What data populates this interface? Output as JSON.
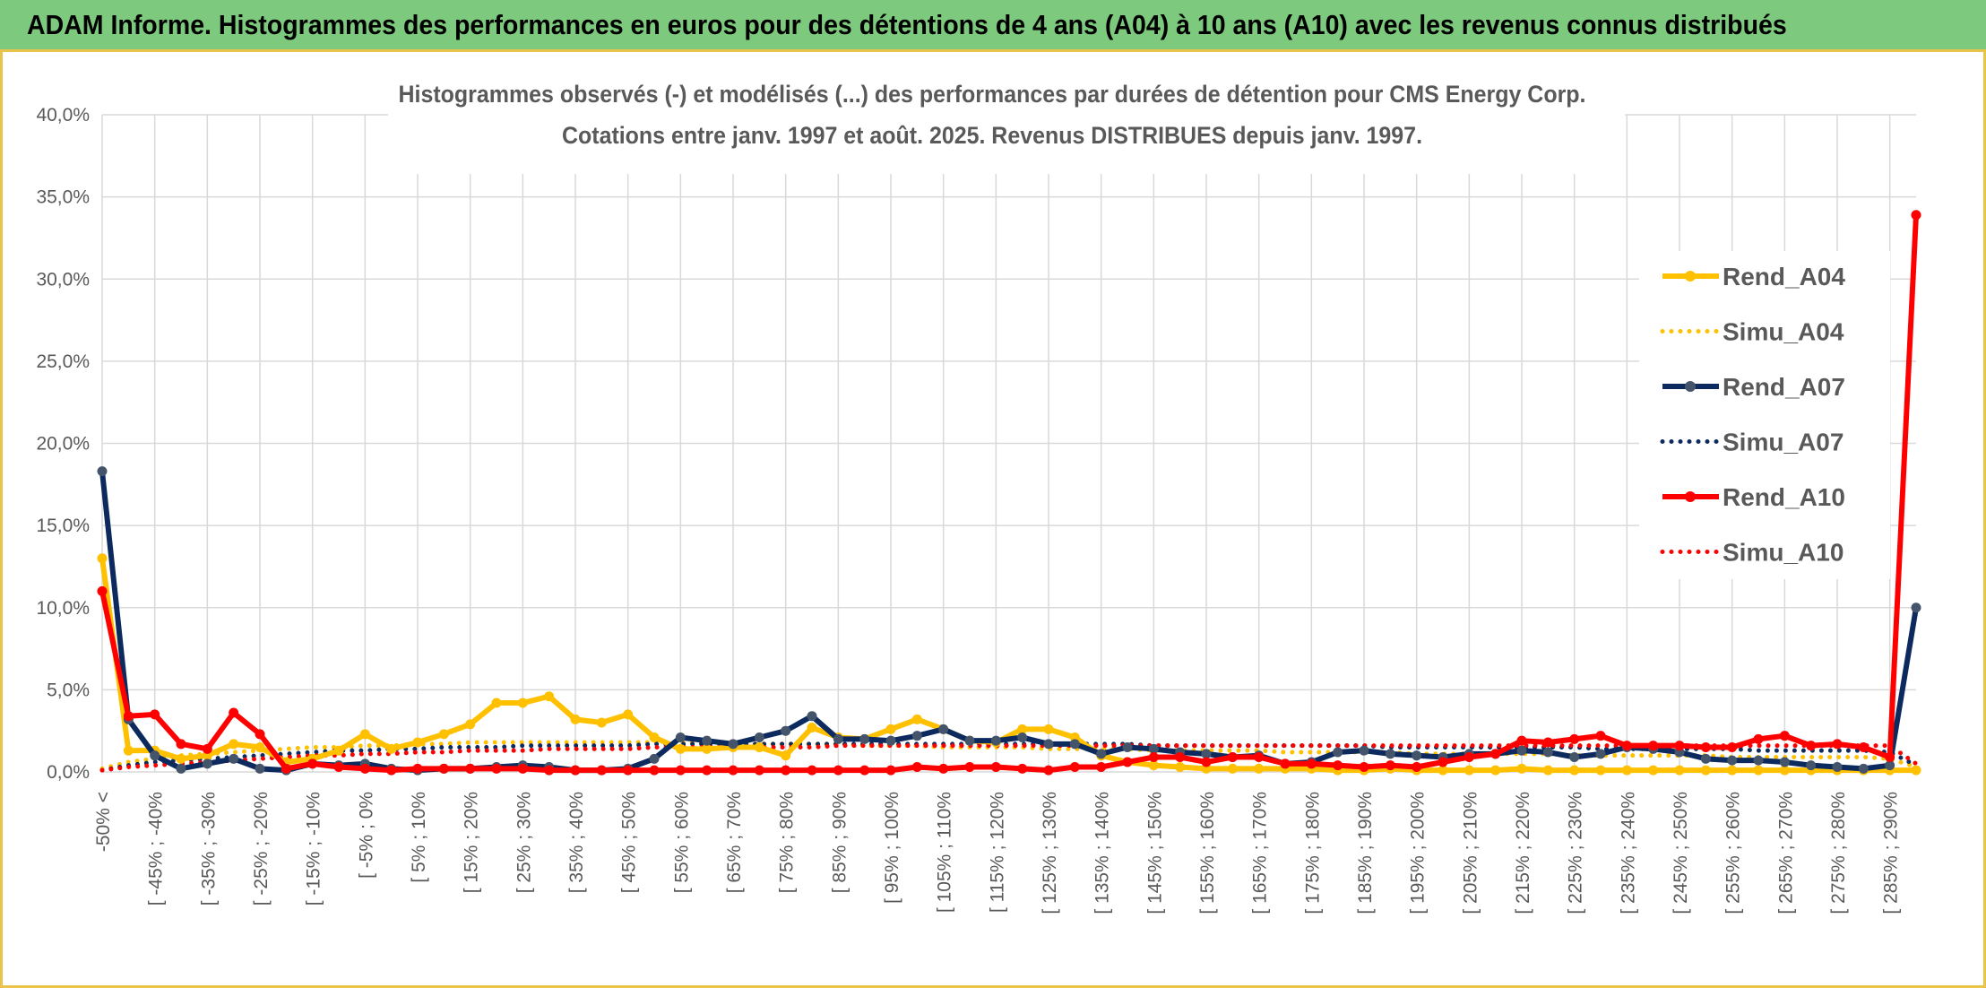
{
  "banner": {
    "title": "ADAM Informe. Histogrammes des performances en euros pour des détentions de 4 ans (A04) à 10 ans (A10) avec les revenus connus distribués"
  },
  "colors": {
    "banner_bg": "#7dc97d",
    "accent_border": "#e9c34a",
    "grid": "#d9d9d9",
    "axis_text": "#595959",
    "yellow": "#ffc000",
    "navy": "#0d2a5e",
    "red": "#ff0000"
  },
  "chart_data": {
    "type": "line",
    "title": "Histogrammes observés (-) et modélisés (...) des performances par durées de détention pour CMS Energy Corp.",
    "subtitle": "Cotations entre janv. 1997 et août. 2025. Revenus DISTRIBUES depuis janv. 1997.",
    "ylim": [
      0,
      40
    ],
    "yticks": [
      "0,0%",
      "5,0%",
      "10,0%",
      "15,0%",
      "20,0%",
      "25,0%",
      "30,0%",
      "35,0%",
      "40,0%"
    ],
    "grid": true,
    "legend_position": "right",
    "categories": [
      "-50% <",
      "[ -45% ; -40%",
      "[ -35% ; -30%",
      "[ -25% ; -20%",
      "[ -15% ; -10%",
      "[ -5% ; 0%",
      "[ 5% ; 10%",
      "[ 15% ; 20%",
      "[ 25% ; 30%",
      "[ 35% ; 40%",
      "[ 45% ; 50%",
      "[ 55% ; 60%",
      "[ 65% ; 70%",
      "[ 75% ; 80%",
      "[ 85% ; 90%",
      "[ 95% ; 100%",
      "[ 105% ; 110%",
      "[ 115% ; 120%",
      "[ 125% ; 130%",
      "[ 135% ; 140%",
      "[ 145% ; 150%",
      "[ 155% ; 160%",
      "[ 165% ; 170%",
      "[ 175% ; 180%",
      "[ 185% ; 190%",
      "[ 195% ; 200%",
      "[ 205% ; 210%",
      "[ 215% ; 220%",
      "[ 225% ; 230%",
      "[ 235% ; 240%",
      "[ 245% ; 250%",
      "[ 255% ; 260%",
      "[ 265% ; 270%",
      "[ 275% ; 280%",
      "[ 285% ; 290%"
    ],
    "x": [
      -50,
      -45,
      -40,
      -35,
      -30,
      -25,
      -20,
      -15,
      -10,
      -5,
      0,
      5,
      10,
      15,
      20,
      25,
      30,
      35,
      40,
      45,
      50,
      55,
      60,
      65,
      70,
      75,
      80,
      85,
      90,
      95,
      100,
      105,
      110,
      115,
      120,
      125,
      130,
      135,
      140,
      145,
      150,
      155,
      160,
      165,
      170,
      175,
      180,
      185,
      190,
      195,
      200,
      205,
      210,
      215,
      220,
      225,
      230,
      235,
      240,
      245,
      250,
      255,
      260,
      265,
      270,
      275,
      280,
      285,
      290,
      295
    ],
    "series": [
      {
        "name": "Rend_A04",
        "color": "#ffc000",
        "style": "solid",
        "values": [
          13.0,
          1.3,
          1.3,
          0.8,
          1.0,
          1.7,
          1.5,
          0.6,
          0.8,
          1.3,
          2.3,
          1.4,
          1.8,
          2.3,
          2.9,
          4.2,
          4.2,
          4.6,
          3.2,
          3.0,
          3.5,
          2.1,
          1.4,
          1.4,
          1.5,
          1.5,
          1.0,
          2.7,
          2.1,
          2.0,
          2.6,
          3.2,
          2.6,
          1.9,
          1.8,
          2.6,
          2.6,
          2.1,
          1.0,
          0.6,
          0.4,
          0.3,
          0.2,
          0.2,
          0.2,
          0.2,
          0.2,
          0.1,
          0.1,
          0.2,
          0.1,
          0.1,
          0.1,
          0.1,
          0.2,
          0.1,
          0.1,
          0.1,
          0.1,
          0.1,
          0.1,
          0.1,
          0.1,
          0.1,
          0.1,
          0.1,
          0.1,
          0.1,
          0.1,
          0.1
        ]
      },
      {
        "name": "Simu_A04",
        "color": "#ffc000",
        "style": "dotted",
        "values": [
          0.2,
          0.6,
          0.8,
          1.0,
          1.1,
          1.2,
          1.3,
          1.4,
          1.5,
          1.5,
          1.6,
          1.6,
          1.7,
          1.7,
          1.8,
          1.8,
          1.8,
          1.8,
          1.8,
          1.8,
          1.8,
          1.8,
          1.8,
          1.8,
          1.7,
          1.7,
          1.7,
          1.7,
          1.7,
          1.6,
          1.6,
          1.6,
          1.5,
          1.5,
          1.5,
          1.5,
          1.4,
          1.4,
          1.4,
          1.4,
          1.3,
          1.3,
          1.3,
          1.3,
          1.3,
          1.2,
          1.2,
          1.2,
          1.2,
          1.2,
          1.1,
          1.1,
          1.1,
          1.1,
          1.1,
          1.1,
          1.0,
          1.0,
          1.0,
          1.0,
          1.0,
          1.0,
          0.9,
          0.9,
          0.9,
          0.9,
          0.9,
          0.9,
          0.8,
          0.3
        ]
      },
      {
        "name": "Rend_A07",
        "color": "#0d2a5e",
        "marker_color": "#44546a",
        "style": "solid",
        "values": [
          18.3,
          3.2,
          1.0,
          0.2,
          0.5,
          0.8,
          0.2,
          0.1,
          0.5,
          0.4,
          0.5,
          0.2,
          0.1,
          0.2,
          0.2,
          0.3,
          0.4,
          0.3,
          0.1,
          0.1,
          0.2,
          0.8,
          2.1,
          1.9,
          1.7,
          2.1,
          2.5,
          3.4,
          2.0,
          2.0,
          1.9,
          2.2,
          2.6,
          1.9,
          1.9,
          2.1,
          1.7,
          1.7,
          1.1,
          1.5,
          1.4,
          1.2,
          1.1,
          0.9,
          1.0,
          0.5,
          0.6,
          1.2,
          1.3,
          1.1,
          1.0,
          0.9,
          1.1,
          1.1,
          1.3,
          1.2,
          0.9,
          1.1,
          1.5,
          1.4,
          1.2,
          0.8,
          0.7,
          0.7,
          0.6,
          0.4,
          0.3,
          0.2,
          0.4,
          10.0
        ]
      },
      {
        "name": "Simu_A07",
        "color": "#0d2a5e",
        "style": "dotted",
        "values": [
          0.1,
          0.4,
          0.6,
          0.7,
          0.8,
          0.9,
          1.0,
          1.1,
          1.2,
          1.3,
          1.3,
          1.4,
          1.4,
          1.5,
          1.5,
          1.5,
          1.6,
          1.6,
          1.6,
          1.6,
          1.6,
          1.7,
          1.7,
          1.7,
          1.7,
          1.7,
          1.7,
          1.7,
          1.7,
          1.7,
          1.7,
          1.7,
          1.7,
          1.7,
          1.7,
          1.7,
          1.7,
          1.7,
          1.7,
          1.7,
          1.6,
          1.6,
          1.6,
          1.6,
          1.6,
          1.6,
          1.6,
          1.6,
          1.6,
          1.5,
          1.5,
          1.5,
          1.5,
          1.5,
          1.5,
          1.5,
          1.5,
          1.4,
          1.4,
          1.4,
          1.4,
          1.4,
          1.4,
          1.3,
          1.3,
          1.3,
          1.3,
          1.3,
          1.2,
          0.4
        ]
      },
      {
        "name": "Rend_A10",
        "color": "#ff0000",
        "style": "solid",
        "values": [
          11.0,
          3.4,
          3.5,
          1.7,
          1.4,
          3.6,
          2.3,
          0.2,
          0.5,
          0.3,
          0.2,
          0.1,
          0.2,
          0.2,
          0.2,
          0.2,
          0.2,
          0.1,
          0.1,
          0.1,
          0.1,
          0.1,
          0.1,
          0.1,
          0.1,
          0.1,
          0.1,
          0.1,
          0.1,
          0.1,
          0.1,
          0.3,
          0.2,
          0.3,
          0.3,
          0.2,
          0.1,
          0.3,
          0.3,
          0.6,
          0.9,
          0.9,
          0.6,
          0.9,
          0.9,
          0.5,
          0.5,
          0.4,
          0.3,
          0.4,
          0.3,
          0.6,
          0.9,
          1.1,
          1.9,
          1.8,
          2.0,
          2.2,
          1.6,
          1.6,
          1.6,
          1.5,
          1.5,
          2.0,
          2.2,
          1.6,
          1.7,
          1.5,
          0.9,
          33.9
        ]
      },
      {
        "name": "Simu_A10",
        "color": "#ff0000",
        "style": "dotted",
        "values": [
          0.1,
          0.3,
          0.4,
          0.5,
          0.6,
          0.7,
          0.8,
          0.9,
          1.0,
          1.0,
          1.1,
          1.1,
          1.2,
          1.2,
          1.3,
          1.3,
          1.3,
          1.4,
          1.4,
          1.4,
          1.4,
          1.5,
          1.5,
          1.5,
          1.5,
          1.5,
          1.5,
          1.5,
          1.6,
          1.6,
          1.6,
          1.6,
          1.6,
          1.6,
          1.6,
          1.6,
          1.6,
          1.6,
          1.6,
          1.6,
          1.6,
          1.6,
          1.6,
          1.6,
          1.6,
          1.6,
          1.6,
          1.6,
          1.6,
          1.6,
          1.6,
          1.6,
          1.6,
          1.6,
          1.6,
          1.6,
          1.6,
          1.6,
          1.6,
          1.6,
          1.6,
          1.6,
          1.6,
          1.6,
          1.6,
          1.6,
          1.6,
          1.6,
          1.6,
          0.5
        ]
      }
    ]
  }
}
